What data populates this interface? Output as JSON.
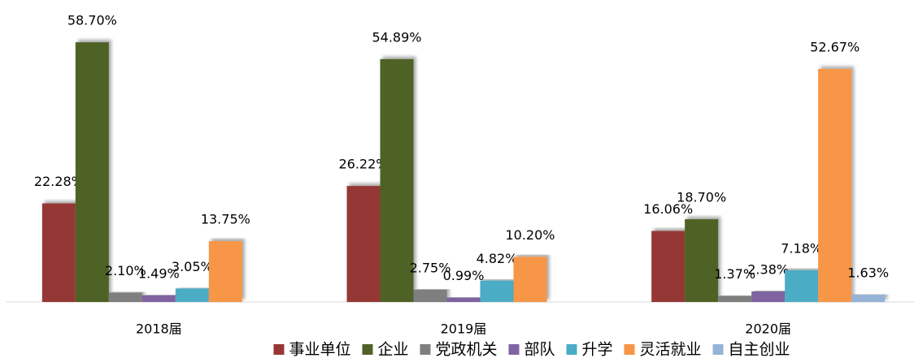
{
  "chart_data": {
    "type": "bar",
    "categories": [
      "2018届",
      "2019届",
      "2020届"
    ],
    "ylim": [
      0,
      60
    ],
    "legend": "bottom",
    "series": [
      {
        "name": "事业单位",
        "color": "#953735",
        "values": [
          22.28,
          26.22,
          16.06
        ],
        "value_labels": [
          "22.28%",
          "26.22%",
          "16.06%"
        ]
      },
      {
        "name": "企业",
        "color": "#4f6228",
        "values": [
          58.7,
          54.89,
          18.7
        ],
        "value_labels": [
          "58.70%",
          "54.89%",
          "18.70%"
        ]
      },
      {
        "name": "党政机关",
        "color": "#7f7f7f",
        "values": [
          2.1,
          2.75,
          1.37
        ],
        "value_labels": [
          "2.10%",
          "2.75%",
          "1.37%"
        ]
      },
      {
        "name": "部队",
        "color": "#8064a2",
        "values": [
          1.49,
          0.99,
          2.38
        ],
        "value_labels": [
          "1.49%",
          "0.99%",
          "2.38%"
        ]
      },
      {
        "name": "升学",
        "color": "#4bacc6",
        "values": [
          3.05,
          4.82,
          7.18
        ],
        "value_labels": [
          "3.05%",
          "4.82%",
          "7.18%"
        ]
      },
      {
        "name": "灵活就业",
        "color": "#f79646",
        "values": [
          13.75,
          10.2,
          52.67
        ],
        "value_labels": [
          "13.75%",
          "10.20%",
          "52.67%"
        ]
      },
      {
        "name": "自主创业",
        "color": "#95b3d7",
        "values": [
          null,
          null,
          1.63
        ],
        "value_labels": [
          null,
          null,
          "1.63%"
        ]
      }
    ]
  }
}
